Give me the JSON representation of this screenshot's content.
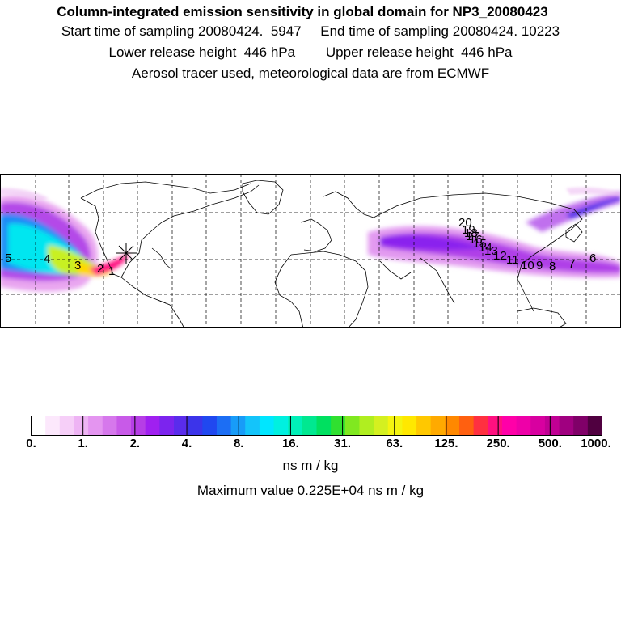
{
  "header": {
    "title": "Column-integrated emission sensitivity in global domain for NP3_20080423",
    "line2": "Start time of sampling 20080424.  5947     End time of sampling 20080424. 10223",
    "line3": "Lower release height  446 hPa        Upper release height  446 hPa",
    "line4": "Aerosol tracer used, meteorological data are from ECMWF"
  },
  "map": {
    "domain": "global",
    "projection": "lon-lat",
    "gridlines": "dashed",
    "release_marker": "star",
    "day_labels": [
      "1",
      "2",
      "3",
      "4",
      "5",
      "6",
      "7",
      "8",
      "9",
      "10",
      "11",
      "12",
      "13",
      "14",
      "15",
      "16",
      "17",
      "18",
      "19",
      "20"
    ]
  },
  "colorbar": {
    "tick_labels": [
      "0.",
      "1.",
      "2.",
      "4.",
      "8.",
      "16.",
      "31.",
      "63.",
      "125.",
      "250.",
      "500.",
      "1000."
    ],
    "colors": [
      "#ffffff",
      "#fce8fc",
      "#f6cff8",
      "#eeb4f4",
      "#e495f0",
      "#d678ec",
      "#c85ae8",
      "#b63ee6",
      "#a020f0",
      "#7c24ee",
      "#5a2cec",
      "#3c34ea",
      "#2048f0",
      "#1c6ef4",
      "#189cf8",
      "#14c4fa",
      "#00e6ff",
      "#00f0e0",
      "#00f0b8",
      "#00e890",
      "#00e060",
      "#30e030",
      "#80e820",
      "#b0ee20",
      "#d4f020",
      "#f4f410",
      "#ffe800",
      "#ffc800",
      "#ffaa00",
      "#ff8800",
      "#ff6010",
      "#ff3040",
      "#ff1080",
      "#ff00a8",
      "#ee00a8",
      "#d800a0",
      "#c00094",
      "#a00080",
      "#800068",
      "#500040"
    ]
  },
  "units": "ns m / kg",
  "max_value": "Maximum value  0.225E+04 ns m / kg"
}
